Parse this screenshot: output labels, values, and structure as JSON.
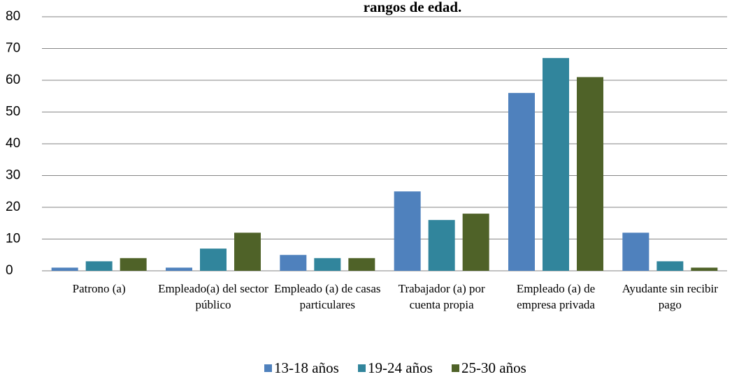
{
  "chart_data": {
    "type": "bar",
    "title": "rangos de edad.",
    "categories": [
      "Patrono (a)",
      "Empleado(a) del sector público",
      "Empleado (a) de casas particulares",
      "Trabajador (a) por cuenta propia",
      "Empleado (a) de empresa privada",
      "Ayudante sin recibir pago"
    ],
    "series": [
      {
        "name": "13-18 años",
        "color": "#4f81bd",
        "values": [
          1,
          1,
          5,
          25,
          56,
          12
        ]
      },
      {
        "name": "19-24 años",
        "color": "#31859c",
        "values": [
          3,
          7,
          4,
          16,
          67,
          3
        ]
      },
      {
        "name": "25-30 años",
        "color": "#4f6228",
        "values": [
          4,
          12,
          4,
          18,
          61,
          1
        ]
      }
    ],
    "ylim": [
      0,
      80
    ],
    "yticks": [
      0,
      10,
      20,
      30,
      40,
      50,
      60,
      70,
      80
    ],
    "grid": true,
    "legend": "bottom"
  }
}
